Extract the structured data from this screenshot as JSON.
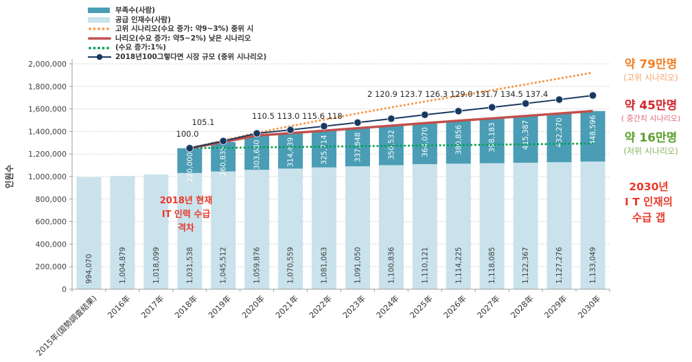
{
  "legend": {
    "items": [
      {
        "label": "부족수(사람)",
        "type": "bar",
        "color": "#4a9db5"
      },
      {
        "label": "공급 인재수(사람)",
        "type": "bar",
        "color": "#c9e2eb"
      },
      {
        "label": "고위 시나리오(수요 증가: 약9~3%) 중위 시",
        "type": "dots",
        "color": "#f79646"
      },
      {
        "label": "나리오(수요 증가: 약5~2%) 낮은 시나리오",
        "type": "line",
        "color": "#c0504d"
      },
      {
        "label": "(수요 증가:1%)",
        "type": "dots",
        "color": "#00a04e"
      },
      {
        "label": "2018년100그렇다면 시장 규모 (중위 시나리오)",
        "type": "line-marker",
        "color": "#17375e"
      }
    ]
  },
  "chart_data": {
    "type": "bar",
    "subtype": "stacked-bars-with-scenario-lines",
    "title": "",
    "xlabel": "",
    "ylabel": "인원수",
    "ylim": [
      0,
      2000000
    ],
    "ytick_step": 200000,
    "grid": true,
    "legend_position": "top-left-inside",
    "categories": [
      "2015年(国勢調査結果)",
      "2016年",
      "2017年",
      "2018年",
      "2019年",
      "2020年",
      "2021年",
      "2022年",
      "2023年",
      "2024年",
      "2025年",
      "2026年",
      "2027年",
      "2028年",
      "2029年",
      "2030年"
    ],
    "scenario_start_index": 3,
    "series": [
      {
        "name": "공급 인재수(사람)",
        "type": "bar",
        "color": "#c9e2eb",
        "values": [
          994070,
          1004879,
          1018099,
          1031538,
          1045512,
          1059876,
          1070559,
          1081063,
          1091050,
          1100836,
          1110121,
          1114225,
          1118085,
          1122367,
          1127276,
          1133049
        ]
      },
      {
        "name": "부족수(사람)",
        "type": "bar-stacked",
        "color": "#4a9db5",
        "values": [
          null,
          null,
          null,
          220000,
          260835,
          303680,
          314439,
          325714,
          337848,
          350532,
          364070,
          380856,
          398183,
          415387,
          432270,
          448596
        ]
      },
      {
        "name": "고위 시나리오(수요 증가: 약9~3%)",
        "type": "dotted-line",
        "color": "#f79646",
        "values": [
          1251538,
          1320000,
          1388000,
          1448000,
          1505000,
          1560000,
          1614000,
          1666000,
          1716000,
          1766000,
          1818000,
          1870000,
          1923000
        ]
      },
      {
        "name": "중위 시나리오(수요 증가: 약5~2%)",
        "type": "line",
        "color": "#c0504d",
        "values": [
          1251538,
          1306347,
          1363556,
          1384998,
          1406777,
          1428898,
          1451368,
          1474191,
          1495081,
          1516268,
          1537754,
          1559546,
          1581645
        ]
      },
      {
        "name": "저위 시나리오(수요 증가:1%)",
        "type": "dotted-line",
        "color": "#00a04e",
        "values": [
          1251538,
          1254997,
          1258456,
          1261914,
          1265373,
          1268832,
          1272291,
          1275750,
          1279208,
          1282667,
          1286126,
          1289585,
          1293049
        ]
      }
    ],
    "index_line": {
      "name": "2018년100그렇다면 시장 규모 (중위 시나리오)",
      "color": "#17375e",
      "base_note": "2018=100",
      "values": [
        100.0,
        105.1,
        110.5,
        113.0,
        115.6,
        118.2,
        120.9,
        123.7,
        126.3,
        129.0,
        131.7,
        134.5,
        137.4
      ],
      "label_groups": [
        "100.0",
        "105.1",
        "110.5 113.0 115.6 118",
        "2 120.9 123.7 126.3 129.0 131.7 134.5 137.4"
      ]
    }
  },
  "annotations": {
    "high": {
      "value_label": "약 79만명",
      "scenario_label": "(고위 시나리오)"
    },
    "mid": {
      "value_label": "약 45만명",
      "scenario_label": "( 중간치 시나리오)"
    },
    "low": {
      "value_label": "약 16만명",
      "scenario_label": "(저위 시나리오)"
    },
    "gap_2030": {
      "line1": "2030년",
      "line2": "I T 인재의",
      "line3": "수급 갭"
    },
    "gap_2018": {
      "line1": "2018년 현재",
      "line2": "IT 인력 수급",
      "line3": "격차"
    }
  },
  "colors": {
    "supply_bar": "#c9e2eb",
    "shortage_bar": "#4a9db5",
    "high_scenario": "#f79646",
    "mid_scenario": "#c0504d",
    "low_scenario": "#00a04e",
    "index_line": "#17375e",
    "gridline": "#c6c6c6",
    "axis": "#9c9c9c",
    "tick_text": "#3f3f3f",
    "annotation_red": "#e8392b"
  }
}
